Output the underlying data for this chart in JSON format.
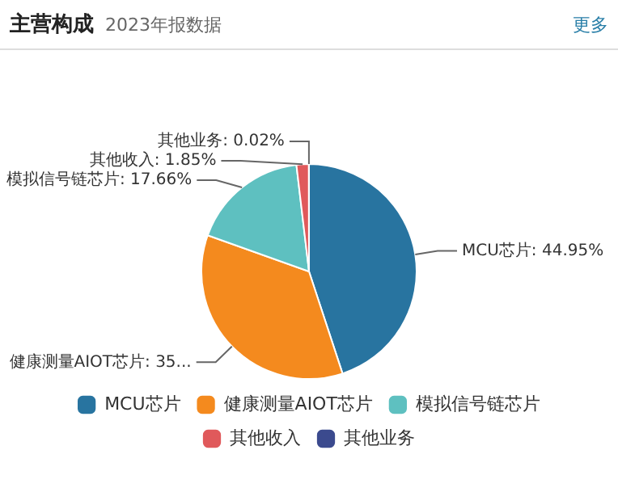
{
  "chart_data": {
    "type": "pie",
    "title": "主营构成",
    "subtitle": "2023年报数据",
    "annotations": [
      "更多"
    ],
    "categories": [
      "MCU芯片",
      "健康测量AIOT芯片",
      "模拟信号链芯片",
      "其他收入",
      "其他业务"
    ],
    "values": [
      44.95,
      35.52,
      17.66,
      1.85,
      0.02
    ],
    "colors": [
      "#2874a0",
      "#f48a1e",
      "#5ec0c0",
      "#e0595b",
      "#3b4a8e"
    ],
    "value_labels": [
      "MCU芯片: 44.95%",
      "健康测量AIOT芯片: 35...",
      "模拟信号链芯片: 17.66%",
      "其他收入: 1.85%",
      "其他业务: 0.02%"
    ],
    "legend": "bottom"
  }
}
